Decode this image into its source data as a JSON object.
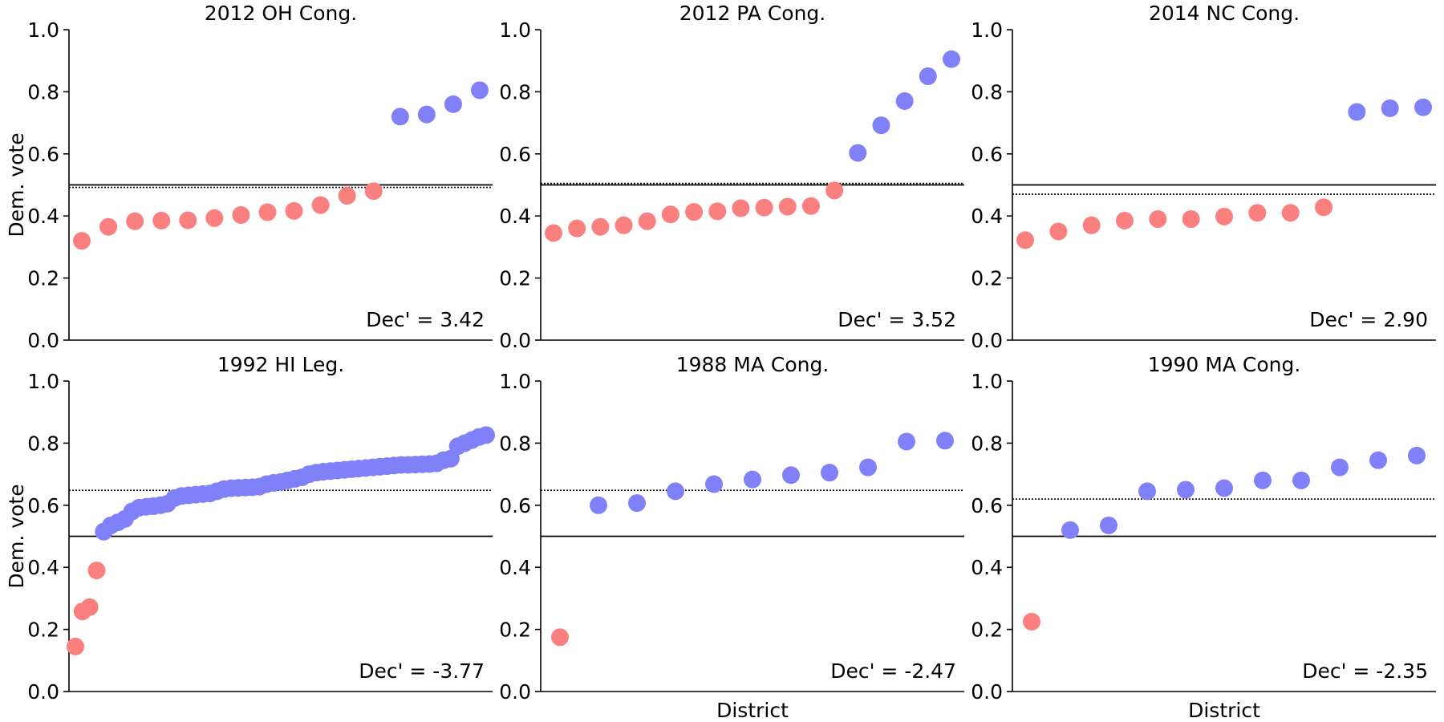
{
  "colors": {
    "dem": "#8080F8",
    "rep": "#FA8080",
    "axis": "#000000"
  },
  "chart_data": [
    {
      "type": "scatter",
      "title": "2012 OH Cong.",
      "xlabel": "",
      "ylabel": "Dem. vote",
      "ylim": [
        0,
        1
      ],
      "yticks": [
        "0.0",
        "0.2",
        "0.4",
        "0.6",
        "0.8",
        "1.0"
      ],
      "values": [
        0.32,
        0.365,
        0.383,
        0.385,
        0.386,
        0.393,
        0.403,
        0.412,
        0.416,
        0.435,
        0.465,
        0.48,
        0.72,
        0.727,
        0.76,
        0.805
      ],
      "mean_line": 0.492,
      "threshold": 0.5,
      "stat_label": "Dec' = 3.42",
      "stat_value": 3.42
    },
    {
      "type": "scatter",
      "title": "2012 PA Cong.",
      "xlabel": "",
      "ylabel": "",
      "ylim": [
        0,
        1
      ],
      "yticks": [
        "0.0",
        "0.2",
        "0.4",
        "0.6",
        "0.8",
        "1.0"
      ],
      "values": [
        0.345,
        0.36,
        0.365,
        0.37,
        0.383,
        0.405,
        0.413,
        0.415,
        0.425,
        0.427,
        0.43,
        0.432,
        0.482,
        0.603,
        0.692,
        0.77,
        0.85,
        0.905
      ],
      "mean_line": 0.505,
      "threshold": 0.5,
      "stat_label": "Dec' = 3.52",
      "stat_value": 3.52
    },
    {
      "type": "scatter",
      "title": "2014 NC Cong.",
      "xlabel": "",
      "ylabel": "",
      "ylim": [
        0,
        1
      ],
      "yticks": [
        "0.0",
        "0.2",
        "0.4",
        "0.6",
        "0.8",
        "1.0"
      ],
      "values": [
        0.322,
        0.35,
        0.37,
        0.385,
        0.39,
        0.39,
        0.398,
        0.41,
        0.41,
        0.428,
        0.735,
        0.747,
        0.75
      ],
      "mean_line": 0.47,
      "threshold": 0.5,
      "stat_label": "Dec' = 2.90",
      "stat_value": 2.9
    },
    {
      "type": "scatter",
      "title": "1992 HI Leg.",
      "xlabel": "",
      "ylabel": "Dem. vote",
      "ylim": [
        0,
        1
      ],
      "yticks": [
        "0.0",
        "0.2",
        "0.4",
        "0.6",
        "0.8",
        "1.0"
      ],
      "values": [
        0.145,
        0.258,
        0.272,
        0.39,
        0.515,
        0.535,
        0.545,
        0.556,
        0.58,
        0.592,
        0.595,
        0.597,
        0.6,
        0.605,
        0.623,
        0.63,
        0.632,
        0.634,
        0.636,
        0.638,
        0.645,
        0.652,
        0.655,
        0.656,
        0.657,
        0.658,
        0.66,
        0.668,
        0.672,
        0.675,
        0.68,
        0.685,
        0.69,
        0.7,
        0.705,
        0.708,
        0.71,
        0.712,
        0.714,
        0.716,
        0.718,
        0.72,
        0.722,
        0.724,
        0.726,
        0.728,
        0.73,
        0.73,
        0.731,
        0.732,
        0.733,
        0.735,
        0.745,
        0.75,
        0.79,
        0.8,
        0.81,
        0.82,
        0.826
      ],
      "mean_line": 0.648,
      "threshold": 0.5,
      "stat_label": "Dec' = -3.77",
      "stat_value": -3.77
    },
    {
      "type": "scatter",
      "title": "1988 MA Cong.",
      "xlabel": "District",
      "ylabel": "",
      "ylim": [
        0,
        1
      ],
      "yticks": [
        "0.0",
        "0.2",
        "0.4",
        "0.6",
        "0.8",
        "1.0"
      ],
      "values": [
        0.175,
        0.6,
        0.607,
        0.645,
        0.668,
        0.683,
        0.697,
        0.705,
        0.722,
        0.805,
        0.808
      ],
      "mean_line": 0.648,
      "threshold": 0.5,
      "stat_label": "Dec' = -2.47",
      "stat_value": -2.47
    },
    {
      "type": "scatter",
      "title": "1990 MA Cong.",
      "xlabel": "District",
      "ylabel": "",
      "ylim": [
        0,
        1
      ],
      "yticks": [
        "0.0",
        "0.2",
        "0.4",
        "0.6",
        "0.8",
        "1.0"
      ],
      "values": [
        0.225,
        0.52,
        0.535,
        0.645,
        0.65,
        0.655,
        0.68,
        0.68,
        0.722,
        0.745,
        0.76
      ],
      "mean_line": 0.62,
      "threshold": 0.5,
      "stat_label": "Dec' = -2.35",
      "stat_value": -2.35
    }
  ]
}
